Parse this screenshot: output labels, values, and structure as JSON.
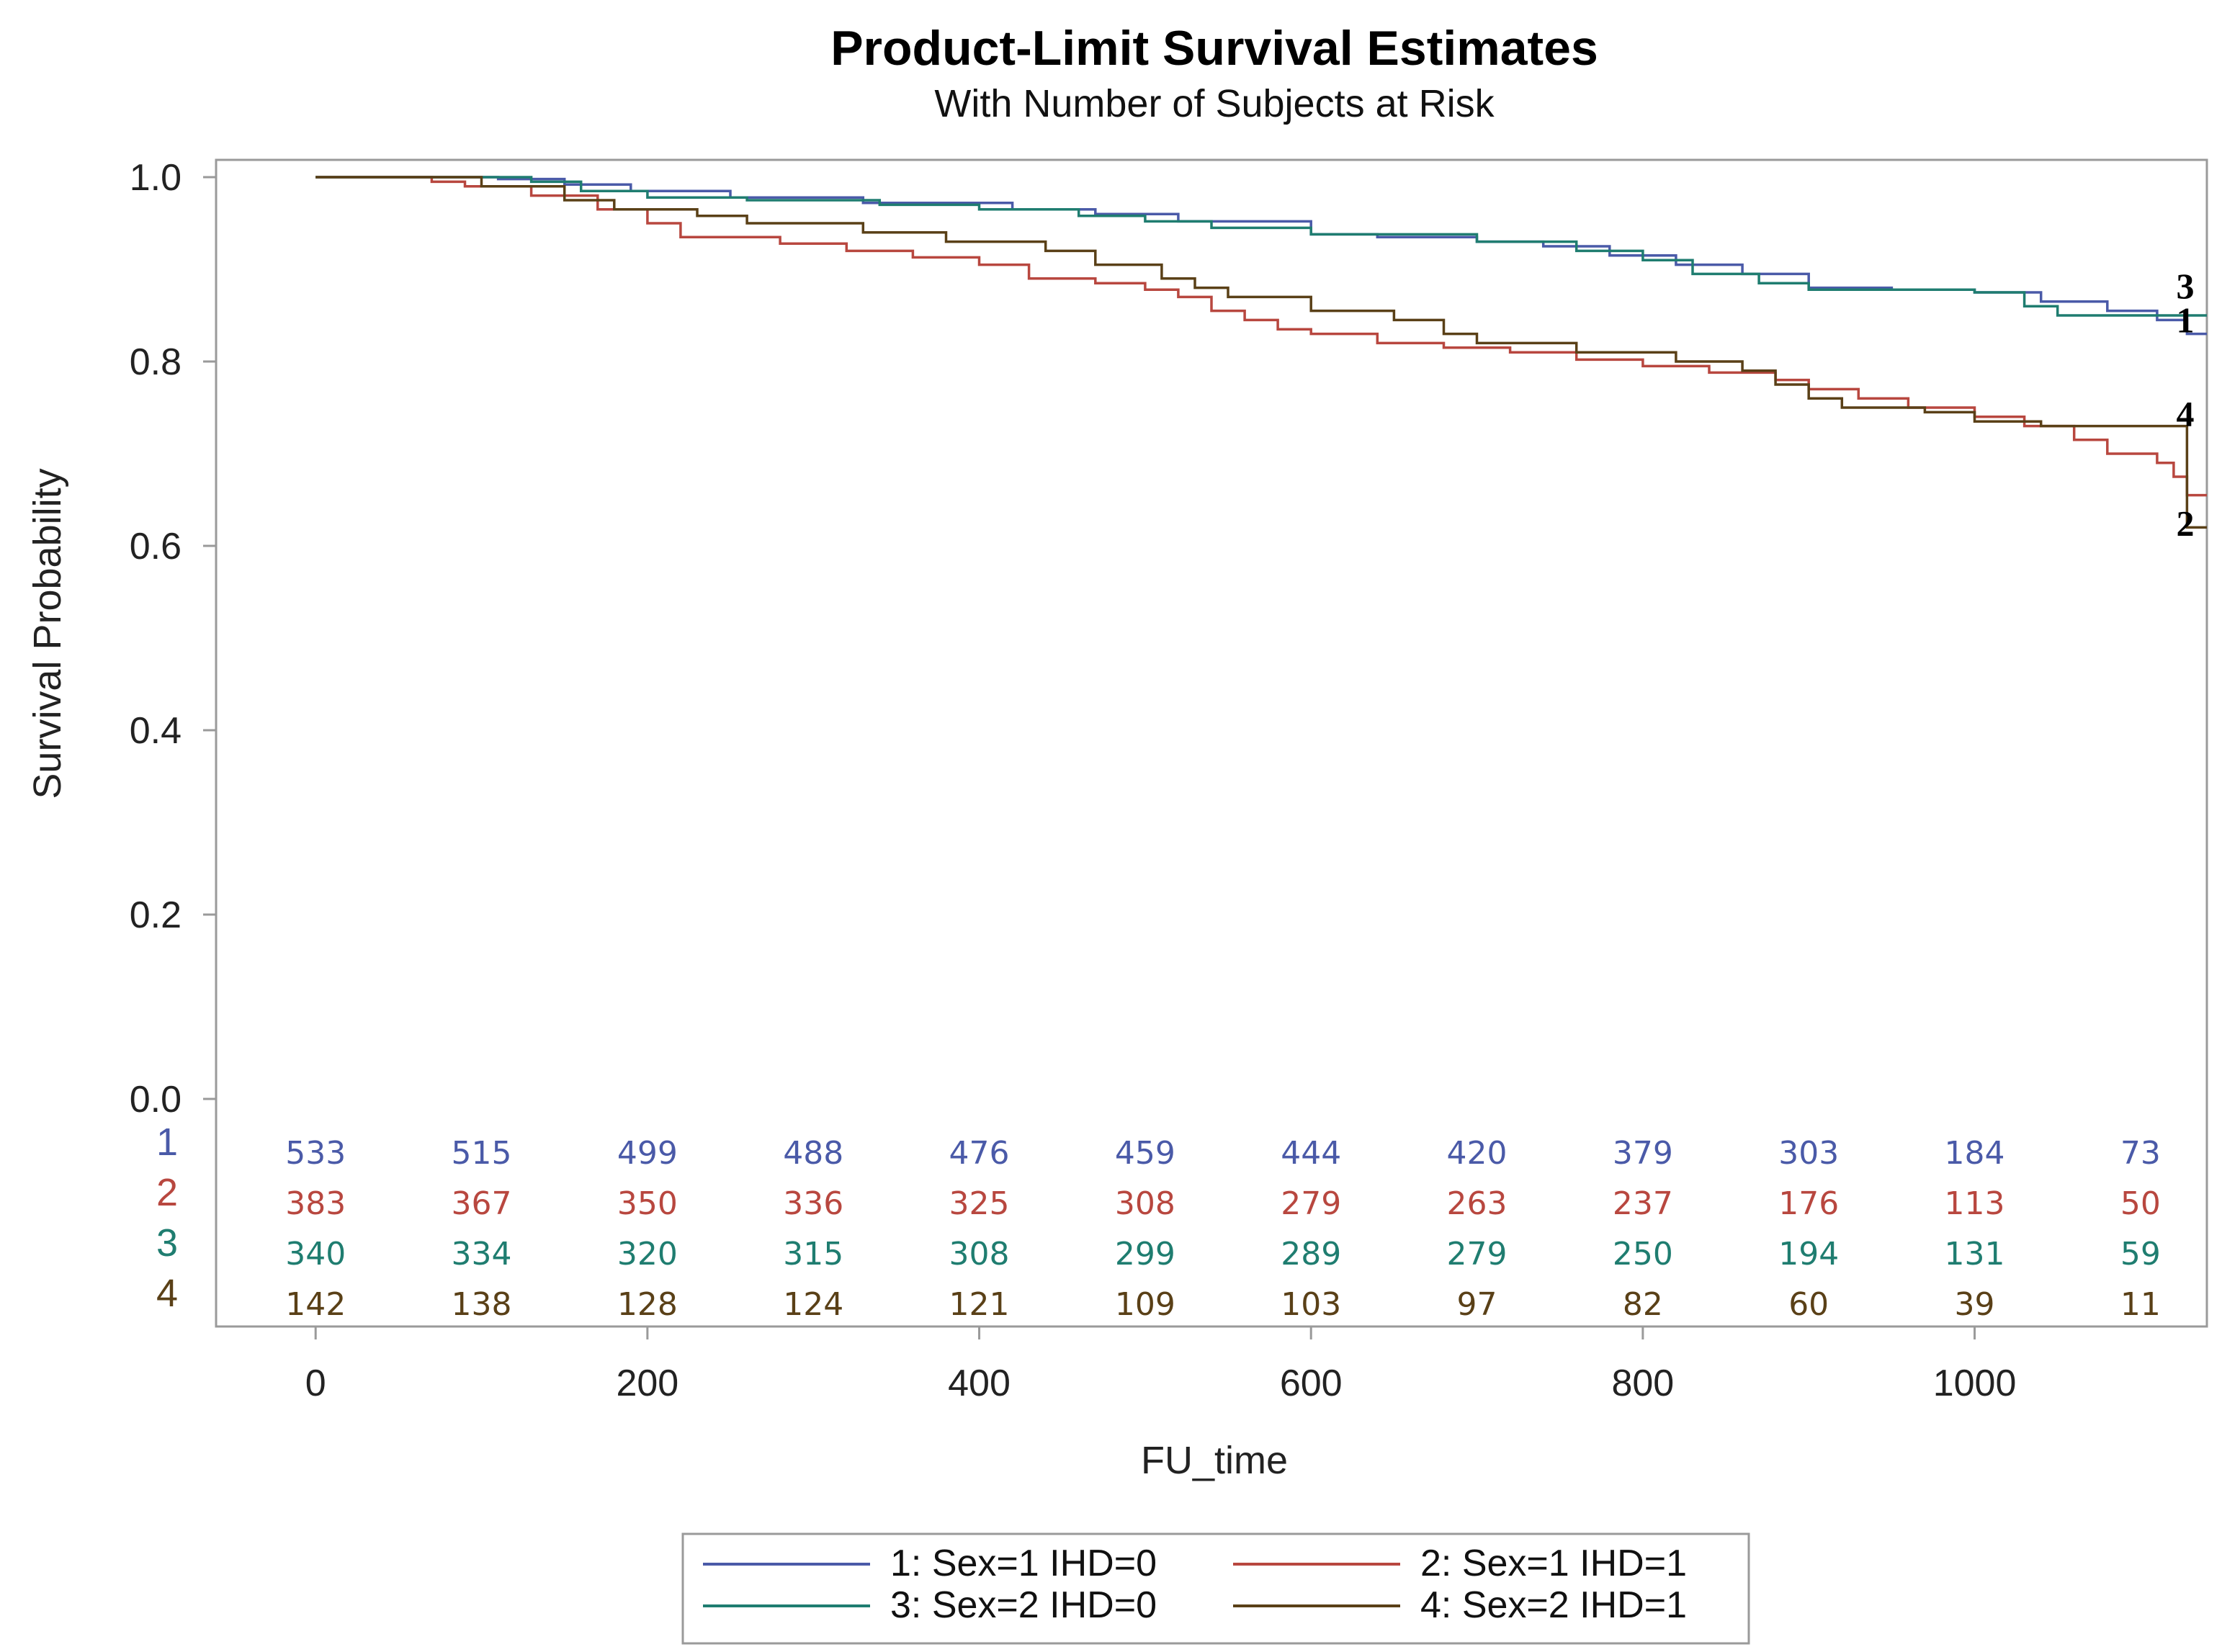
{
  "chart_data": {
    "type": "line",
    "title": "Product-Limit Survival Estimates",
    "subtitle": "With Number of Subjects at Risk",
    "xlabel": "FU_time",
    "ylabel": "Survival Probability",
    "xlim": [
      -60,
      1140
    ],
    "ylim": [
      0.0,
      1.0
    ],
    "x_ticks": [
      0,
      200,
      400,
      600,
      800,
      1000
    ],
    "x_tick_labels": [
      "0",
      "200",
      "400",
      "600",
      "800",
      "1000"
    ],
    "y_ticks": [
      0.0,
      0.2,
      0.4,
      0.6,
      0.8,
      1.0
    ],
    "y_tick_labels": [
      "0.0",
      "0.2",
      "0.4",
      "0.6",
      "0.8",
      "1.0"
    ],
    "risk_times": [
      0,
      100,
      200,
      300,
      400,
      500,
      600,
      700,
      800,
      900,
      1000,
      1100
    ],
    "series": [
      {
        "id": "1",
        "name": "1: Sex=1 IHD=0",
        "color": "#4a5aa8",
        "end_label": "1",
        "points": [
          [
            0,
            1.0
          ],
          [
            110,
            0.998
          ],
          [
            150,
            0.992
          ],
          [
            190,
            0.985
          ],
          [
            250,
            0.978
          ],
          [
            330,
            0.972
          ],
          [
            420,
            0.965
          ],
          [
            470,
            0.96
          ],
          [
            520,
            0.952
          ],
          [
            600,
            0.938
          ],
          [
            640,
            0.935
          ],
          [
            700,
            0.93
          ],
          [
            740,
            0.925
          ],
          [
            780,
            0.915
          ],
          [
            820,
            0.905
          ],
          [
            860,
            0.895
          ],
          [
            900,
            0.88
          ],
          [
            950,
            0.878
          ],
          [
            1000,
            0.875
          ],
          [
            1040,
            0.865
          ],
          [
            1080,
            0.855
          ],
          [
            1110,
            0.845
          ],
          [
            1128,
            0.83
          ],
          [
            1140,
            0.83
          ]
        ],
        "at_risk": [
          "533",
          "515",
          "499",
          "488",
          "476",
          "459",
          "444",
          "420",
          "379",
          "303",
          "184",
          "73"
        ]
      },
      {
        "id": "2",
        "name": "2: Sex=1 IHD=1",
        "color": "#b8473f",
        "end_label": "2",
        "points": [
          [
            0,
            1.0
          ],
          [
            70,
            0.995
          ],
          [
            90,
            0.99
          ],
          [
            130,
            0.98
          ],
          [
            170,
            0.965
          ],
          [
            200,
            0.95
          ],
          [
            220,
            0.935
          ],
          [
            280,
            0.928
          ],
          [
            320,
            0.92
          ],
          [
            360,
            0.913
          ],
          [
            400,
            0.905
          ],
          [
            430,
            0.89
          ],
          [
            470,
            0.885
          ],
          [
            500,
            0.878
          ],
          [
            520,
            0.87
          ],
          [
            540,
            0.855
          ],
          [
            560,
            0.845
          ],
          [
            580,
            0.835
          ],
          [
            600,
            0.83
          ],
          [
            640,
            0.82
          ],
          [
            680,
            0.815
          ],
          [
            720,
            0.81
          ],
          [
            760,
            0.802
          ],
          [
            800,
            0.795
          ],
          [
            840,
            0.788
          ],
          [
            880,
            0.78
          ],
          [
            900,
            0.77
          ],
          [
            930,
            0.76
          ],
          [
            960,
            0.75
          ],
          [
            1000,
            0.74
          ],
          [
            1030,
            0.73
          ],
          [
            1060,
            0.715
          ],
          [
            1080,
            0.7
          ],
          [
            1110,
            0.69
          ],
          [
            1120,
            0.675
          ],
          [
            1128,
            0.655
          ],
          [
            1140,
            0.655
          ]
        ],
        "at_risk": [
          "383",
          "367",
          "350",
          "336",
          "325",
          "308",
          "279",
          "263",
          "237",
          "176",
          "113",
          "50"
        ]
      },
      {
        "id": "3",
        "name": "3: Sex=2 IHD=0",
        "color": "#1f7d70",
        "end_label": "3",
        "points": [
          [
            0,
            1.0
          ],
          [
            130,
            0.995
          ],
          [
            160,
            0.985
          ],
          [
            200,
            0.978
          ],
          [
            260,
            0.975
          ],
          [
            340,
            0.97
          ],
          [
            400,
            0.965
          ],
          [
            460,
            0.958
          ],
          [
            500,
            0.952
          ],
          [
            540,
            0.945
          ],
          [
            600,
            0.938
          ],
          [
            700,
            0.93
          ],
          [
            760,
            0.92
          ],
          [
            800,
            0.91
          ],
          [
            830,
            0.895
          ],
          [
            870,
            0.885
          ],
          [
            900,
            0.878
          ],
          [
            960,
            0.878
          ],
          [
            1000,
            0.875
          ],
          [
            1030,
            0.86
          ],
          [
            1050,
            0.85
          ],
          [
            1140,
            0.85
          ]
        ],
        "at_risk": [
          "340",
          "334",
          "320",
          "315",
          "308",
          "299",
          "289",
          "279",
          "250",
          "194",
          "131",
          "59"
        ]
      },
      {
        "id": "4",
        "name": "4: Sex=2 IHD=1",
        "color": "#5a4017",
        "end_label": "4",
        "points": [
          [
            0,
            1.0
          ],
          [
            100,
            0.99
          ],
          [
            150,
            0.975
          ],
          [
            180,
            0.965
          ],
          [
            230,
            0.958
          ],
          [
            260,
            0.95
          ],
          [
            330,
            0.94
          ],
          [
            380,
            0.93
          ],
          [
            440,
            0.92
          ],
          [
            470,
            0.905
          ],
          [
            510,
            0.89
          ],
          [
            530,
            0.88
          ],
          [
            550,
            0.87
          ],
          [
            600,
            0.855
          ],
          [
            650,
            0.845
          ],
          [
            680,
            0.83
          ],
          [
            700,
            0.82
          ],
          [
            760,
            0.81
          ],
          [
            820,
            0.8
          ],
          [
            860,
            0.79
          ],
          [
            880,
            0.775
          ],
          [
            900,
            0.76
          ],
          [
            920,
            0.75
          ],
          [
            970,
            0.745
          ],
          [
            1000,
            0.735
          ],
          [
            1040,
            0.73
          ],
          [
            1128,
            0.73
          ],
          [
            1128,
            0.62
          ],
          [
            1140,
            0.62
          ]
        ],
        "at_risk": [
          "142",
          "138",
          "128",
          "124",
          "121",
          "109",
          "103",
          "97",
          "82",
          "60",
          "39",
          "11"
        ]
      }
    ],
    "legend": [
      {
        "label": "1: Sex=1 IHD=0",
        "color": "#4a5aa8"
      },
      {
        "label": "2: Sex=1 IHD=1",
        "color": "#b8473f"
      },
      {
        "label": "3: Sex=2 IHD=0",
        "color": "#1f7d70"
      },
      {
        "label": "4: Sex=2 IHD=1",
        "color": "#5a4017"
      }
    ],
    "legend_position": "bottom"
  }
}
